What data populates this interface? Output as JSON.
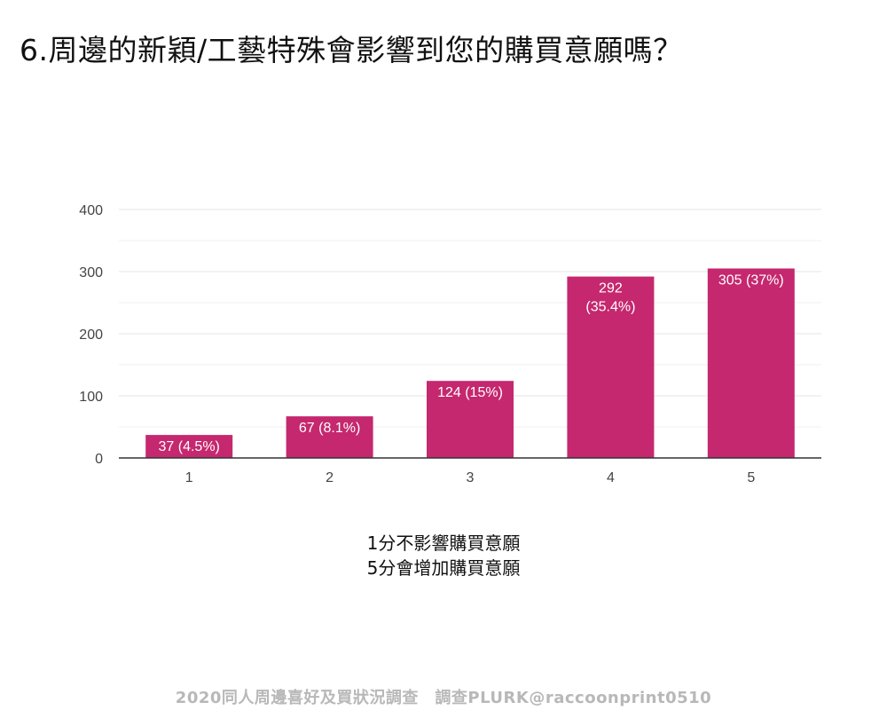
{
  "title": "6.周邊的新穎/工藝特殊會影響到您的購買意願嗎？",
  "notes": [
    "1分不影響購買意願",
    "5分會增加購買意願"
  ],
  "footer": "2020同人周邊喜好及買狀況調查　調查PLURK@raccoonprint0510",
  "colors": {
    "bar": "#c5286f",
    "grid": "#e6e6e6",
    "axis": "#333333"
  },
  "chart_data": {
    "type": "bar",
    "categories": [
      "1",
      "2",
      "3",
      "4",
      "5"
    ],
    "values": [
      37,
      67,
      124,
      292,
      305
    ],
    "data_labels": [
      "37 (4.5%)",
      "67 (8.1%)",
      "124 (15%)",
      "292 (35.4%)",
      "305 (37%)"
    ],
    "yticks": [
      0,
      100,
      200,
      300,
      400
    ],
    "ylim": [
      0,
      400
    ],
    "grid": true,
    "minor_gridlines": true,
    "legend": "none"
  }
}
